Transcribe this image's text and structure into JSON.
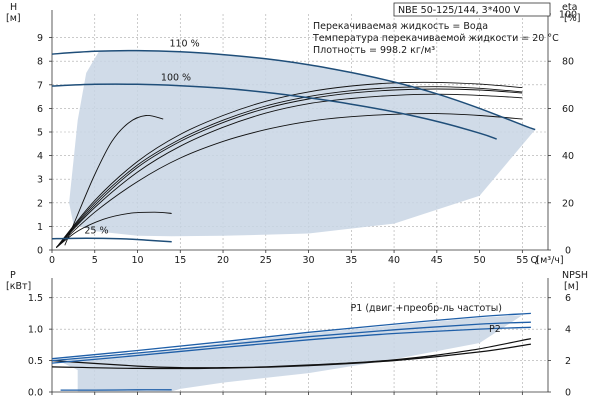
{
  "header": {
    "model": "NBE 50-125/144, 3*400 V",
    "conditions": [
      "Перекачиваемая жидкость = Вода",
      "Температура перекачиваемой жидкости = 20 °C",
      "Плотность = 998.2 кг/м³"
    ]
  },
  "colors": {
    "region_fill": "#c8d5e4",
    "pump_curve": "#1f4e79",
    "efficiency_curve": "#111111",
    "power_line": "#1f5fa8"
  },
  "chart_data": [
    {
      "type": "line",
      "title": "",
      "ylabel": "H",
      "yunit": "[м]",
      "y2label": "eta",
      "y2unit": "[%]",
      "xlabel": "Q",
      "xunit": "[м³/ч]",
      "xlim": [
        0,
        58
      ],
      "ylim": [
        0,
        10
      ],
      "y2lim": [
        0,
        100
      ],
      "grid": true,
      "x_ticks": [
        0,
        5,
        10,
        15,
        20,
        25,
        30,
        35,
        40,
        45,
        50,
        55
      ],
      "y_ticks": [
        0,
        1,
        2,
        3,
        4,
        5,
        6,
        7,
        8,
        9
      ],
      "y2_ticks": [
        0,
        20,
        40,
        60,
        80,
        100
      ],
      "operating_region": {
        "upper": [
          [
            0,
            8.3
          ],
          [
            5,
            8.42
          ],
          [
            10,
            8.45
          ],
          [
            15,
            8.4
          ],
          [
            20,
            8.28
          ],
          [
            25,
            8.1
          ],
          [
            30,
            7.85
          ],
          [
            35,
            7.52
          ],
          [
            40,
            7.12
          ],
          [
            45,
            6.62
          ],
          [
            50,
            6.0
          ],
          [
            55,
            5.3
          ],
          [
            56.5,
            5.1
          ]
        ],
        "lower": [
          [
            56.5,
            5.1
          ],
          [
            50,
            2.3
          ],
          [
            40,
            1.12
          ],
          [
            30,
            0.7
          ],
          [
            20,
            0.6
          ],
          [
            14,
            0.58
          ],
          [
            10,
            0.6
          ],
          [
            5,
            0.8
          ],
          [
            2.5,
            1.1
          ],
          [
            2,
            2.0
          ],
          [
            3,
            5.5
          ],
          [
            4,
            7.5
          ],
          [
            5.5,
            8.42
          ]
        ]
      },
      "series": [
        {
          "name": "110 %",
          "points": [
            [
              0,
              8.3
            ],
            [
              5,
              8.42
            ],
            [
              10,
              8.45
            ],
            [
              15,
              8.4
            ],
            [
              20,
              8.28
            ],
            [
              25,
              8.1
            ],
            [
              30,
              7.85
            ],
            [
              35,
              7.52
            ],
            [
              40,
              7.12
            ],
            [
              45,
              6.62
            ],
            [
              50,
              6.0
            ],
            [
              55,
              5.3
            ],
            [
              56.5,
              5.1
            ]
          ]
        },
        {
          "name": "100 %",
          "points": [
            [
              0,
              6.95
            ],
            [
              5,
              7.02
            ],
            [
              10,
              7.02
            ],
            [
              15,
              6.96
            ],
            [
              20,
              6.85
            ],
            [
              25,
              6.68
            ],
            [
              30,
              6.45
            ],
            [
              35,
              6.18
            ],
            [
              40,
              5.85
            ],
            [
              45,
              5.45
            ],
            [
              50,
              4.95
            ],
            [
              52,
              4.7
            ]
          ]
        },
        {
          "name": "25 %",
          "points": [
            [
              0,
              0.48
            ],
            [
              4,
              0.5
            ],
            [
              8,
              0.48
            ],
            [
              11,
              0.42
            ],
            [
              14,
              0.35
            ]
          ]
        }
      ],
      "efficiency_series": [
        {
          "name": "",
          "points": [
            [
              1.5,
              2
            ],
            [
              3,
              15
            ],
            [
              5,
              32
            ],
            [
              7,
              46
            ],
            [
              9,
              54
            ],
            [
              11,
              57
            ],
            [
              13,
              55.5
            ]
          ]
        },
        {
          "name": "",
          "points": [
            [
              0.5,
              1
            ],
            [
              5,
              18
            ],
            [
              10,
              33
            ],
            [
              15,
              44
            ],
            [
              20,
              52
            ],
            [
              25,
              58
            ],
            [
              30,
              62
            ],
            [
              35,
              64.2
            ],
            [
              40,
              65.5
            ],
            [
              45,
              66
            ],
            [
              50,
              65.5
            ],
            [
              55,
              64.5
            ]
          ]
        },
        {
          "name": "",
          "points": [
            [
              0.5,
              1
            ],
            [
              5,
              19
            ],
            [
              10,
              35
            ],
            [
              15,
              46
            ],
            [
              20,
              54
            ],
            [
              25,
              60
            ],
            [
              30,
              64
            ],
            [
              35,
              66.5
            ],
            [
              40,
              67.8
            ],
            [
              45,
              68.2
            ],
            [
              50,
              67.8
            ],
            [
              55,
              66.5
            ]
          ]
        },
        {
          "name": "",
          "points": [
            [
              0.5,
              1
            ],
            [
              5,
              21
            ],
            [
              10,
              37.5
            ],
            [
              15,
              49
            ],
            [
              20,
              57
            ],
            [
              25,
              63
            ],
            [
              30,
              67
            ],
            [
              35,
              69.5
            ],
            [
              40,
              70.8
            ],
            [
              45,
              71
            ],
            [
              50,
              70.3
            ],
            [
              55,
              68.8
            ]
          ]
        },
        {
          "name": "",
          "points": [
            [
              0.5,
              1
            ],
            [
              5,
              20
            ],
            [
              10,
              36
            ],
            [
              15,
              47
            ],
            [
              20,
              55
            ],
            [
              25,
              61
            ],
            [
              30,
              65
            ],
            [
              35,
              67.5
            ],
            [
              40,
              68.8
            ],
            [
              45,
              69.2
            ],
            [
              50,
              68.5
            ],
            [
              55,
              67
            ]
          ]
        },
        {
          "name": "",
          "points": [
            [
              0.5,
              1
            ],
            [
              5,
              16
            ],
            [
              10,
              29
            ],
            [
              15,
              39
            ],
            [
              20,
              46
            ],
            [
              25,
              51
            ],
            [
              30,
              54.5
            ],
            [
              35,
              56.5
            ],
            [
              40,
              57.5
            ],
            [
              45,
              57.8
            ],
            [
              50,
              57
            ],
            [
              55,
              55.5
            ]
          ]
        },
        {
          "name": "",
          "points": [
            [
              0.5,
              1
            ],
            [
              3,
              8
            ],
            [
              6,
              13
            ],
            [
              9,
              15.5
            ],
            [
              12,
              16
            ],
            [
              14,
              15.5
            ]
          ]
        }
      ]
    },
    {
      "type": "line",
      "title": "",
      "ylabel": "P",
      "yunit": "[кВт]",
      "y2label": "NPSH",
      "y2unit": "[м]",
      "xlim": [
        0,
        58
      ],
      "ylim": [
        0,
        1.75
      ],
      "y2lim": [
        0,
        7
      ],
      "grid": true,
      "y_ticks": [
        0,
        0.5,
        1.0,
        1.5
      ],
      "y_tick_labels": [
        "0.0",
        "0.5",
        "1.0",
        "1.5"
      ],
      "y2_ticks": [
        0,
        2,
        4,
        6
      ],
      "operating_region": {
        "upper": [
          [
            0,
            0.5
          ],
          [
            10,
            0.62
          ],
          [
            20,
            0.78
          ],
          [
            30,
            0.93
          ],
          [
            40,
            1.06
          ],
          [
            50,
            1.18
          ],
          [
            55,
            1.22
          ]
        ],
        "lower": [
          [
            55,
            1.22
          ],
          [
            50,
            0.78
          ],
          [
            40,
            0.52
          ],
          [
            30,
            0.3
          ],
          [
            20,
            0.15
          ],
          [
            15,
            0.05
          ],
          [
            14,
            0.01
          ],
          [
            3,
            0.01
          ],
          [
            3,
            0.35
          ],
          [
            1,
            0.48
          ]
        ]
      },
      "series": [
        {
          "name": "P1 (двиг.+преобр-ль частоты)",
          "points": [
            [
              0,
              0.53
            ],
            [
              10,
              0.66
            ],
            [
              20,
              0.8
            ],
            [
              30,
              0.95
            ],
            [
              40,
              1.08
            ],
            [
              50,
              1.2
            ],
            [
              56,
              1.25
            ]
          ]
        },
        {
          "name": "P2",
          "points": [
            [
              0,
              0.46
            ],
            [
              10,
              0.58
            ],
            [
              20,
              0.71
            ],
            [
              30,
              0.83
            ],
            [
              40,
              0.93
            ],
            [
              50,
              1.0
            ],
            [
              56,
              1.03
            ]
          ]
        },
        {
          "name": "",
          "points": [
            [
              0,
              0.5
            ],
            [
              10,
              0.62
            ],
            [
              20,
              0.75
            ],
            [
              30,
              0.88
            ],
            [
              40,
              0.99
            ],
            [
              50,
              1.08
            ],
            [
              56,
              1.11
            ]
          ]
        },
        {
          "name": "",
          "points": [
            [
              1,
              0.03
            ],
            [
              5,
              0.03
            ],
            [
              10,
              0.035
            ],
            [
              14,
              0.035
            ]
          ]
        }
      ],
      "npsh_series": [
        {
          "name": "",
          "points": [
            [
              0,
              2.0
            ],
            [
              10,
              1.65
            ],
            [
              15,
              1.55
            ],
            [
              20,
              1.55
            ],
            [
              25,
              1.6
            ],
            [
              30,
              1.72
            ],
            [
              35,
              1.85
            ],
            [
              40,
              2.05
            ],
            [
              45,
              2.35
            ],
            [
              50,
              2.75
            ],
            [
              56,
              3.4
            ]
          ]
        },
        {
          "name": "",
          "points": [
            [
              0,
              1.6
            ],
            [
              10,
              1.5
            ],
            [
              20,
              1.52
            ],
            [
              30,
              1.68
            ],
            [
              40,
              2.0
            ],
            [
              50,
              2.55
            ],
            [
              56,
              3.05
            ]
          ]
        }
      ]
    }
  ]
}
